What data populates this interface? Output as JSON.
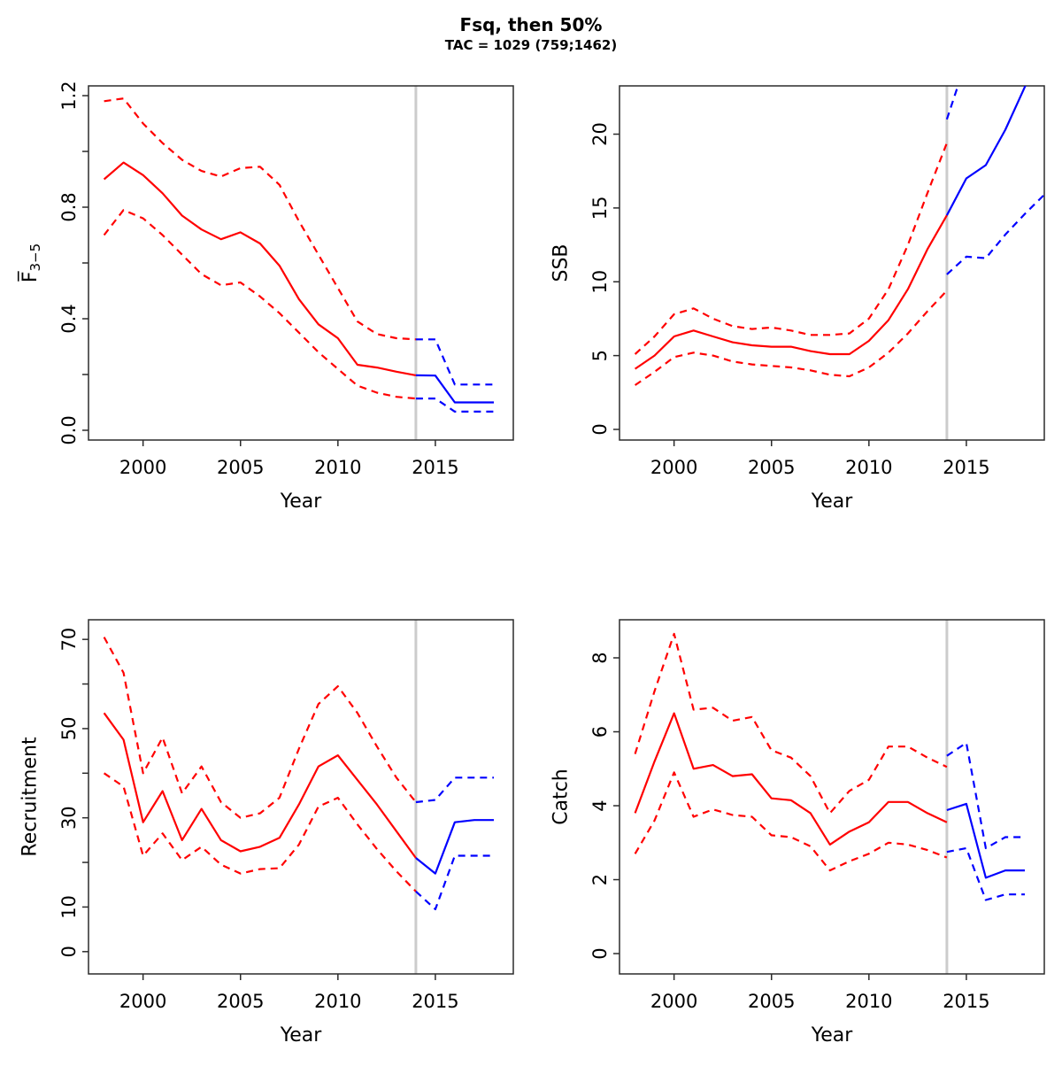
{
  "header": {
    "title": "Fsq, then 50%",
    "subtitle": "TAC = 1029 (759;1462)"
  },
  "colors": {
    "historical": "#ff0000",
    "projection": "#0000ff",
    "divider": "#cccccc",
    "frame": "#2b2b2b",
    "text": "#000000"
  },
  "chart_data": [
    {
      "type": "line",
      "id": "fbar",
      "ylabel": "F3-5",
      "ylabel_rich": {
        "main": "F̅",
        "sub": "3−5"
      },
      "xlabel": "Year",
      "xticks": [
        2000,
        2005,
        2010,
        2015
      ],
      "xlim": [
        1997.2,
        2019.0
      ],
      "ylim": [
        -0.035,
        1.235
      ],
      "ytick_values": [
        0.0,
        0.2,
        0.4,
        0.6,
        0.8,
        1.0,
        1.2
      ],
      "ytick_labels": [
        "0.0",
        "",
        "0.4",
        "",
        "0.8",
        "",
        "1.2"
      ],
      "divider_year": 2014,
      "legend_position": "none",
      "grid": false,
      "series": [
        {
          "name": "historical-median",
          "style": "solid",
          "color_key": "historical",
          "year_start": 1998,
          "values": [
            0.9,
            0.96,
            0.915,
            0.85,
            0.77,
            0.72,
            0.685,
            0.71,
            0.67,
            0.59,
            0.47,
            0.38,
            0.33,
            0.235,
            0.225,
            0.21,
            0.197
          ]
        },
        {
          "name": "historical-upper-ci",
          "style": "dashed",
          "color_key": "historical",
          "year_start": 1998,
          "values": [
            1.18,
            1.19,
            1.1,
            1.03,
            0.97,
            0.93,
            0.91,
            0.94,
            0.945,
            0.88,
            0.75,
            0.63,
            0.51,
            0.39,
            0.345,
            0.33,
            0.326
          ]
        },
        {
          "name": "historical-lower-ci",
          "style": "dashed",
          "color_key": "historical",
          "year_start": 1998,
          "values": [
            0.7,
            0.79,
            0.76,
            0.7,
            0.63,
            0.56,
            0.52,
            0.53,
            0.48,
            0.42,
            0.35,
            0.28,
            0.22,
            0.16,
            0.135,
            0.12,
            0.114
          ]
        },
        {
          "name": "projection-median",
          "style": "solid",
          "color_key": "projection",
          "year_start": 2014,
          "values": [
            0.197,
            0.196,
            0.1,
            0.1,
            0.1
          ]
        },
        {
          "name": "projection-upper-ci",
          "style": "dashed",
          "color_key": "projection",
          "year_start": 2014,
          "values": [
            0.326,
            0.326,
            0.164,
            0.164,
            0.164
          ]
        },
        {
          "name": "projection-lower-ci",
          "style": "dashed",
          "color_key": "projection",
          "year_start": 2014,
          "values": [
            0.114,
            0.114,
            0.067,
            0.067,
            0.067
          ]
        }
      ]
    },
    {
      "type": "line",
      "id": "ssb",
      "ylabel": "SSB",
      "xlabel": "Year",
      "xticks": [
        2000,
        2005,
        2010,
        2015
      ],
      "xlim": [
        1997.2,
        2019.0
      ],
      "ylim": [
        -0.72,
        23.27
      ],
      "ytick_values": [
        0,
        5,
        10,
        15,
        20
      ],
      "ytick_labels": [
        "0",
        "5",
        "10",
        "15",
        "20"
      ],
      "divider_year": 2014,
      "legend_position": "none",
      "grid": false,
      "series": [
        {
          "name": "historical-median",
          "style": "solid",
          "color_key": "historical",
          "year_start": 1998,
          "values": [
            4.1,
            5.0,
            6.3,
            6.7,
            6.3,
            5.9,
            5.7,
            5.6,
            5.6,
            5.3,
            5.1,
            5.1,
            6.0,
            7.4,
            9.5,
            12.2,
            14.5
          ]
        },
        {
          "name": "historical-upper-ci",
          "style": "dashed",
          "color_key": "historical",
          "year_start": 1998,
          "values": [
            5.1,
            6.3,
            7.8,
            8.2,
            7.5,
            7.0,
            6.8,
            6.9,
            6.7,
            6.4,
            6.4,
            6.5,
            7.5,
            9.5,
            12.5,
            16.0,
            19.4
          ]
        },
        {
          "name": "historical-lower-ci",
          "style": "dashed",
          "color_key": "historical",
          "year_start": 1998,
          "values": [
            3.0,
            3.9,
            4.9,
            5.2,
            5.0,
            4.6,
            4.4,
            4.3,
            4.2,
            4.0,
            3.7,
            3.6,
            4.2,
            5.2,
            6.5,
            8.0,
            9.4
          ]
        },
        {
          "name": "projection-median",
          "style": "solid",
          "color_key": "projection",
          "year_start": 2014,
          "values": [
            14.5,
            17.0,
            17.9,
            20.3,
            23.2,
            26.0
          ]
        },
        {
          "name": "projection-upper-ci",
          "style": "dashed",
          "color_key": "projection",
          "year_start": 2014,
          "values": [
            21.0,
            25.0,
            null,
            null,
            null,
            null
          ]
        },
        {
          "name": "projection-lower-ci",
          "style": "dashed",
          "color_key": "projection",
          "year_start": 2014,
          "values": [
            10.5,
            11.7,
            11.6,
            13.2,
            14.6,
            15.9
          ]
        }
      ]
    },
    {
      "type": "line",
      "id": "recruitment",
      "ylabel": "Recruitment",
      "xlabel": "Year",
      "xticks": [
        2000,
        2005,
        2010,
        2015
      ],
      "xlim": [
        1997.2,
        2019.0
      ],
      "ylim": [
        -5.0,
        74.4
      ],
      "ytick_values": [
        0,
        10,
        20,
        30,
        40,
        50,
        60,
        70
      ],
      "ytick_labels": [
        "0",
        "10",
        "",
        "30",
        "",
        "50",
        "",
        "70"
      ],
      "divider_year": 2014,
      "legend_position": "none",
      "grid": false,
      "series": [
        {
          "name": "historical-median",
          "style": "solid",
          "color_key": "historical",
          "year_start": 1998,
          "values": [
            53.5,
            47.5,
            29,
            36,
            25,
            32,
            25,
            22.5,
            23.5,
            25.5,
            33,
            41.5,
            44,
            38.5,
            33,
            27,
            21
          ]
        },
        {
          "name": "historical-upper-ci",
          "style": "dashed",
          "color_key": "historical",
          "year_start": 1998,
          "values": [
            70.5,
            62.5,
            40,
            48,
            35.5,
            41.5,
            33.5,
            30,
            31,
            34.5,
            45.5,
            55.5,
            59.5,
            53.5,
            46,
            39,
            33.5
          ]
        },
        {
          "name": "historical-lower-ci",
          "style": "dashed",
          "color_key": "historical",
          "year_start": 1998,
          "values": [
            40,
            37,
            21.5,
            26.5,
            20.5,
            23.5,
            19.5,
            17.5,
            18.5,
            18.7,
            24,
            32.5,
            34.5,
            28.5,
            23,
            18,
            13.5
          ]
        },
        {
          "name": "projection-median",
          "style": "solid",
          "color_key": "projection",
          "year_start": 2014,
          "values": [
            21,
            17.5,
            29,
            29.5,
            29.5
          ]
        },
        {
          "name": "projection-upper-ci",
          "style": "dashed",
          "color_key": "projection",
          "year_start": 2014,
          "values": [
            33.5,
            34,
            39,
            39,
            39
          ]
        },
        {
          "name": "projection-lower-ci",
          "style": "dashed",
          "color_key": "projection",
          "year_start": 2014,
          "values": [
            13.5,
            9.5,
            21.5,
            21.5,
            21.5
          ]
        }
      ]
    },
    {
      "type": "line",
      "id": "catch",
      "ylabel": "Catch",
      "xlabel": "Year",
      "xticks": [
        2000,
        2005,
        2010,
        2015
      ],
      "xlim": [
        1997.2,
        2019.0
      ],
      "ylim": [
        -0.55,
        9.03
      ],
      "ytick_values": [
        0,
        2,
        4,
        6,
        8
      ],
      "ytick_labels": [
        "0",
        "2",
        "4",
        "6",
        "8"
      ],
      "divider_year": 2014,
      "legend_position": "none",
      "grid": false,
      "series": [
        {
          "name": "historical-median",
          "style": "solid",
          "color_key": "historical",
          "year_start": 1998,
          "values": [
            3.8,
            5.2,
            6.5,
            5.0,
            5.1,
            4.8,
            4.85,
            4.2,
            4.15,
            3.8,
            2.95,
            3.3,
            3.55,
            4.1,
            4.1,
            3.8,
            3.55
          ]
        },
        {
          "name": "historical-upper-ci",
          "style": "dashed",
          "color_key": "historical",
          "year_start": 1998,
          "values": [
            5.4,
            7.1,
            8.65,
            6.6,
            6.65,
            6.3,
            6.4,
            5.5,
            5.3,
            4.8,
            3.8,
            4.4,
            4.7,
            5.6,
            5.6,
            5.3,
            5.05
          ]
        },
        {
          "name": "historical-lower-ci",
          "style": "dashed",
          "color_key": "historical",
          "year_start": 1998,
          "values": [
            2.7,
            3.6,
            4.9,
            3.7,
            3.9,
            3.75,
            3.7,
            3.2,
            3.15,
            2.9,
            2.25,
            2.5,
            2.7,
            3.0,
            2.95,
            2.8,
            2.6
          ]
        },
        {
          "name": "projection-median",
          "style": "solid",
          "color_key": "projection",
          "year_start": 2014,
          "values": [
            3.88,
            4.05,
            2.05,
            2.25,
            2.25
          ]
        },
        {
          "name": "projection-upper-ci",
          "style": "dashed",
          "color_key": "projection",
          "year_start": 2014,
          "values": [
            5.35,
            5.7,
            2.85,
            3.15,
            3.15
          ]
        },
        {
          "name": "projection-lower-ci",
          "style": "dashed",
          "color_key": "projection",
          "year_start": 2014,
          "values": [
            2.75,
            2.85,
            1.45,
            1.6,
            1.6
          ]
        }
      ]
    }
  ]
}
